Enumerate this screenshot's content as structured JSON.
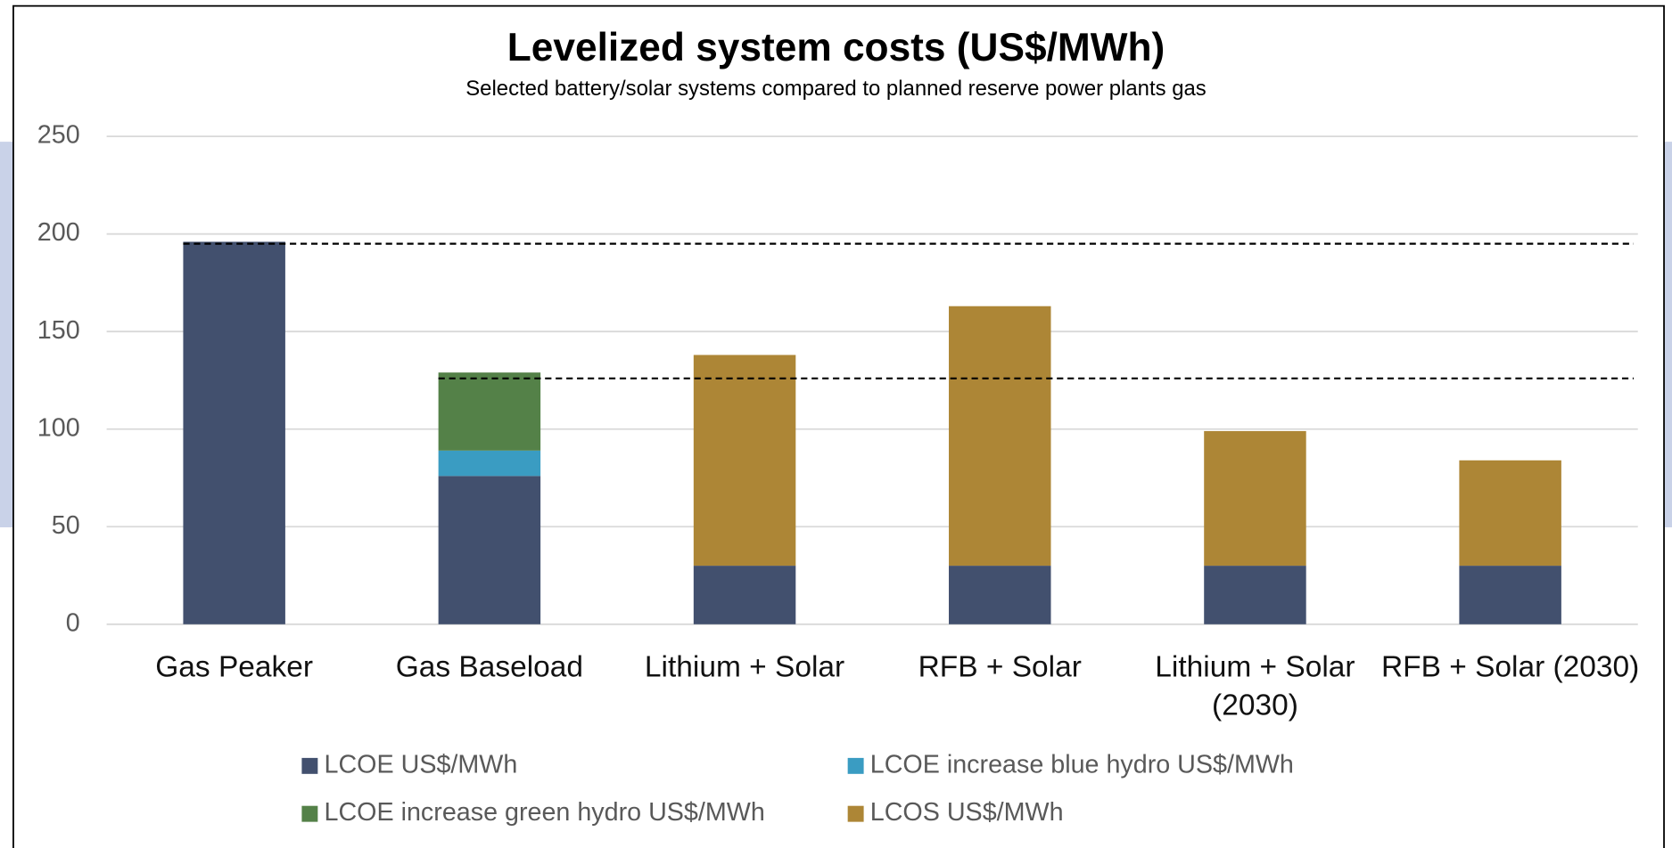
{
  "chart_data": {
    "type": "bar",
    "stacked": true,
    "title": "Levelized system costs (US$/MWh)",
    "subtitle": "Selected battery/solar systems compared to planned reserve power plants gas",
    "categories": [
      "Gas Peaker",
      "Gas Baseload",
      "Lithium + Solar",
      "RFB + Solar",
      "Lithium + Solar (2030)",
      "RFB + Solar (2030)"
    ],
    "series": [
      {
        "name": "LCOE US$/MWh",
        "color": "#42506e",
        "values": [
          196,
          76,
          30,
          30,
          30,
          30
        ]
      },
      {
        "name": "LCOE increase blue hydro US$/MWh",
        "color": "#3a9cc2",
        "values": [
          null,
          13,
          null,
          null,
          null,
          null
        ]
      },
      {
        "name": "LCOE increase green hydro US$/MWh",
        "color": "#548148",
        "values": [
          null,
          40,
          null,
          null,
          null,
          null
        ]
      },
      {
        "name": "LCOS US$/MWh",
        "color": "#ad8636",
        "values": [
          null,
          null,
          108,
          133,
          69,
          54
        ]
      }
    ],
    "reference_lines": [
      195,
      126
    ],
    "ylim": [
      0,
      250
    ],
    "yticks": [
      0,
      50,
      100,
      150,
      200,
      250
    ],
    "grid": true,
    "legend": "bottom"
  }
}
